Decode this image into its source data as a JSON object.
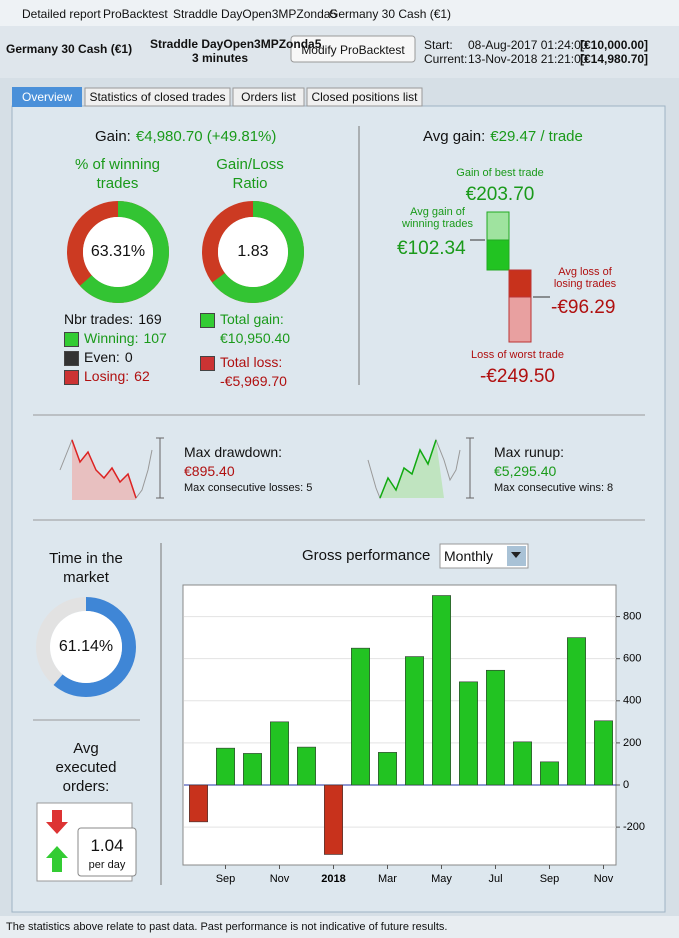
{
  "window": {
    "title": "Detailed report",
    "tabs": [
      "ProBacktest",
      "Straddle DayOpen3MPZonda5",
      "Germany 30 Cash (€1)"
    ]
  },
  "header": {
    "instrument": "Germany 30 Cash (€1)",
    "strategy": "Straddle DayOpen3MPZonda5",
    "timeframe": "3 minutes",
    "button": "Modify ProBacktest",
    "start_label": "Start:",
    "start_date": "08-Aug-2017 01:24:00",
    "start_capital": "[€10,000.00]",
    "current_label": "Current:",
    "current_date": "13-Nov-2018 21:21:00",
    "current_capital": "[€14,980.70]"
  },
  "tabs": [
    "Overview",
    "Statistics of closed trades",
    "Orders list",
    "Closed positions list"
  ],
  "overview": {
    "gain_label": "Gain:",
    "gain_value": "€4,980.70 (+49.81%)",
    "win_title": "% of winning trades",
    "win_pct": {
      "value": 63.31,
      "label": "63.31%"
    },
    "ratio_title": "Gain/Loss Ratio",
    "ratio": 1.83,
    "trades_label": "Nbr trades:",
    "trades": 169,
    "winning_label": "Winning:",
    "winning": 107,
    "even_label": "Even:",
    "even": 0,
    "losing_label": "Losing:",
    "losing": 62,
    "total_gain_label": "Total gain:",
    "total_gain": "€10,950.40",
    "total_loss_label": "Total loss:",
    "total_loss": "-€5,969.70",
    "avg_gain_label": "Avg gain:",
    "avg_gain": "€29.47 / trade",
    "best_label": "Gain of best trade",
    "best": "€203.70",
    "avg_win_label": "Avg gain of winning trades",
    "avg_win": "€102.34",
    "avg_loss_label": "Avg loss of losing trades",
    "avg_loss": "-€96.29",
    "worst_label": "Loss of worst trade",
    "worst": "-€249.50",
    "drawdown_label": "Max drawdown:",
    "drawdown": "€895.40",
    "consec_losses_label": "Max consecutive losses:",
    "consec_losses": 5,
    "runup_label": "Max runup:",
    "runup": "€5,295.40",
    "consec_wins_label": "Max consecutive wins:",
    "consec_wins": 8,
    "time_title": "Time in the market",
    "time_pct": {
      "value": 61.14,
      "label": "61.14%"
    },
    "orders_title": "Avg executed orders:",
    "orders": 1.04,
    "orders_unit": "per day"
  },
  "chart_data": {
    "type": "bar",
    "title": "Gross performance",
    "period": "Monthly",
    "categories": [
      null,
      "Sep",
      null,
      "Nov",
      null,
      "2018",
      null,
      "Mar",
      null,
      "May",
      null,
      "Jul",
      null,
      "Sep",
      null,
      "Nov"
    ],
    "values": [
      -175,
      175,
      150,
      300,
      180,
      -330,
      650,
      155,
      610,
      900,
      490,
      545,
      205,
      110,
      700,
      305
    ],
    "positive_color": "#22c322",
    "negative_color": "#c8321c",
    "ylim": [
      -380,
      950
    ],
    "yticks": [
      -200,
      0,
      200,
      400,
      600,
      800
    ],
    "grid": true
  },
  "footer": "The statistics above relate to past data. Past performance is not indicative of future results."
}
